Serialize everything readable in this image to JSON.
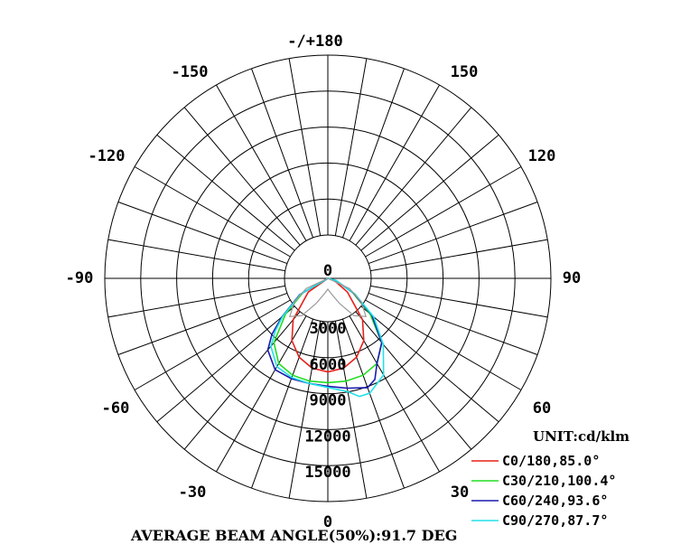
{
  "chart_data": {
    "type": "polar",
    "angle_ticks": [
      "-/+180",
      "150",
      "120",
      "90",
      "60",
      "30",
      "0",
      "-30",
      "-60",
      "-90",
      "-120",
      "-150"
    ],
    "radial_ticks": [
      "0",
      "3000",
      "6000",
      "9000",
      "12000",
      "15000"
    ],
    "radial_max": 15000,
    "unit_label": "UNIT:cd/klm",
    "footer": "AVERAGE BEAM ANGLE(50%):91.7 DEG",
    "series": [
      {
        "name": "C0/180,85.0°",
        "color": "#e8201a",
        "points": [
          [
            -55,
            2000
          ],
          [
            -40,
            4500
          ],
          [
            -30,
            6000
          ],
          [
            -20,
            7000
          ],
          [
            -10,
            7600
          ],
          [
            0,
            7800
          ],
          [
            10,
            7600
          ],
          [
            20,
            7000
          ],
          [
            30,
            6000
          ],
          [
            40,
            4500
          ],
          [
            55,
            2000
          ],
          [
            70,
            600
          ],
          [
            90,
            0
          ]
        ]
      },
      {
        "name": "C30/210,100.4°",
        "color": "#22dd22",
        "points": [
          [
            -60,
            2400
          ],
          [
            -50,
            4600
          ],
          [
            -40,
            7000
          ],
          [
            -30,
            8200
          ],
          [
            -20,
            8600
          ],
          [
            -10,
            8700
          ],
          [
            0,
            8700
          ],
          [
            10,
            8700
          ],
          [
            20,
            8600
          ],
          [
            30,
            8200
          ],
          [
            40,
            7000
          ],
          [
            50,
            4600
          ],
          [
            60,
            2400
          ],
          [
            75,
            700
          ],
          [
            90,
            0
          ]
        ]
      },
      {
        "name": "C60/240,93.6°",
        "color": "#1a1ab0",
        "points": [
          [
            -60,
            2700
          ],
          [
            -50,
            5000
          ],
          [
            -45,
            6600
          ],
          [
            -40,
            7800
          ],
          [
            -30,
            8800
          ],
          [
            -20,
            8900
          ],
          [
            -10,
            8900
          ],
          [
            0,
            9000
          ],
          [
            10,
            9300
          ],
          [
            20,
            9700
          ],
          [
            25,
            9300
          ],
          [
            30,
            8200
          ],
          [
            40,
            7000
          ],
          [
            50,
            4800
          ],
          [
            60,
            2500
          ],
          [
            75,
            700
          ],
          [
            90,
            0
          ]
        ]
      },
      {
        "name": "C90/270,87.7°",
        "color": "#22e0e8",
        "points": [
          [
            -60,
            2600
          ],
          [
            -50,
            4900
          ],
          [
            -45,
            6200
          ],
          [
            -40,
            7400
          ],
          [
            -30,
            8500
          ],
          [
            -20,
            8800
          ],
          [
            -10,
            8900
          ],
          [
            0,
            9100
          ],
          [
            10,
            9600
          ],
          [
            15,
            10200
          ],
          [
            20,
            10200
          ],
          [
            30,
            9300
          ],
          [
            40,
            7200
          ],
          [
            50,
            5000
          ],
          [
            60,
            2600
          ],
          [
            75,
            700
          ],
          [
            90,
            0
          ]
        ]
      },
      {
        "name": "",
        "color": "#999999",
        "points": [
          [
            -65,
            2000
          ],
          [
            -55,
            3400
          ],
          [
            -45,
            4500
          ],
          [
            -35,
            3800
          ],
          [
            -25,
            2300
          ],
          [
            -10,
            1200
          ],
          [
            0,
            900
          ],
          [
            10,
            1200
          ],
          [
            25,
            2300
          ],
          [
            35,
            3800
          ],
          [
            45,
            4500
          ],
          [
            55,
            3400
          ],
          [
            65,
            2000
          ],
          [
            90,
            0
          ]
        ]
      }
    ]
  }
}
